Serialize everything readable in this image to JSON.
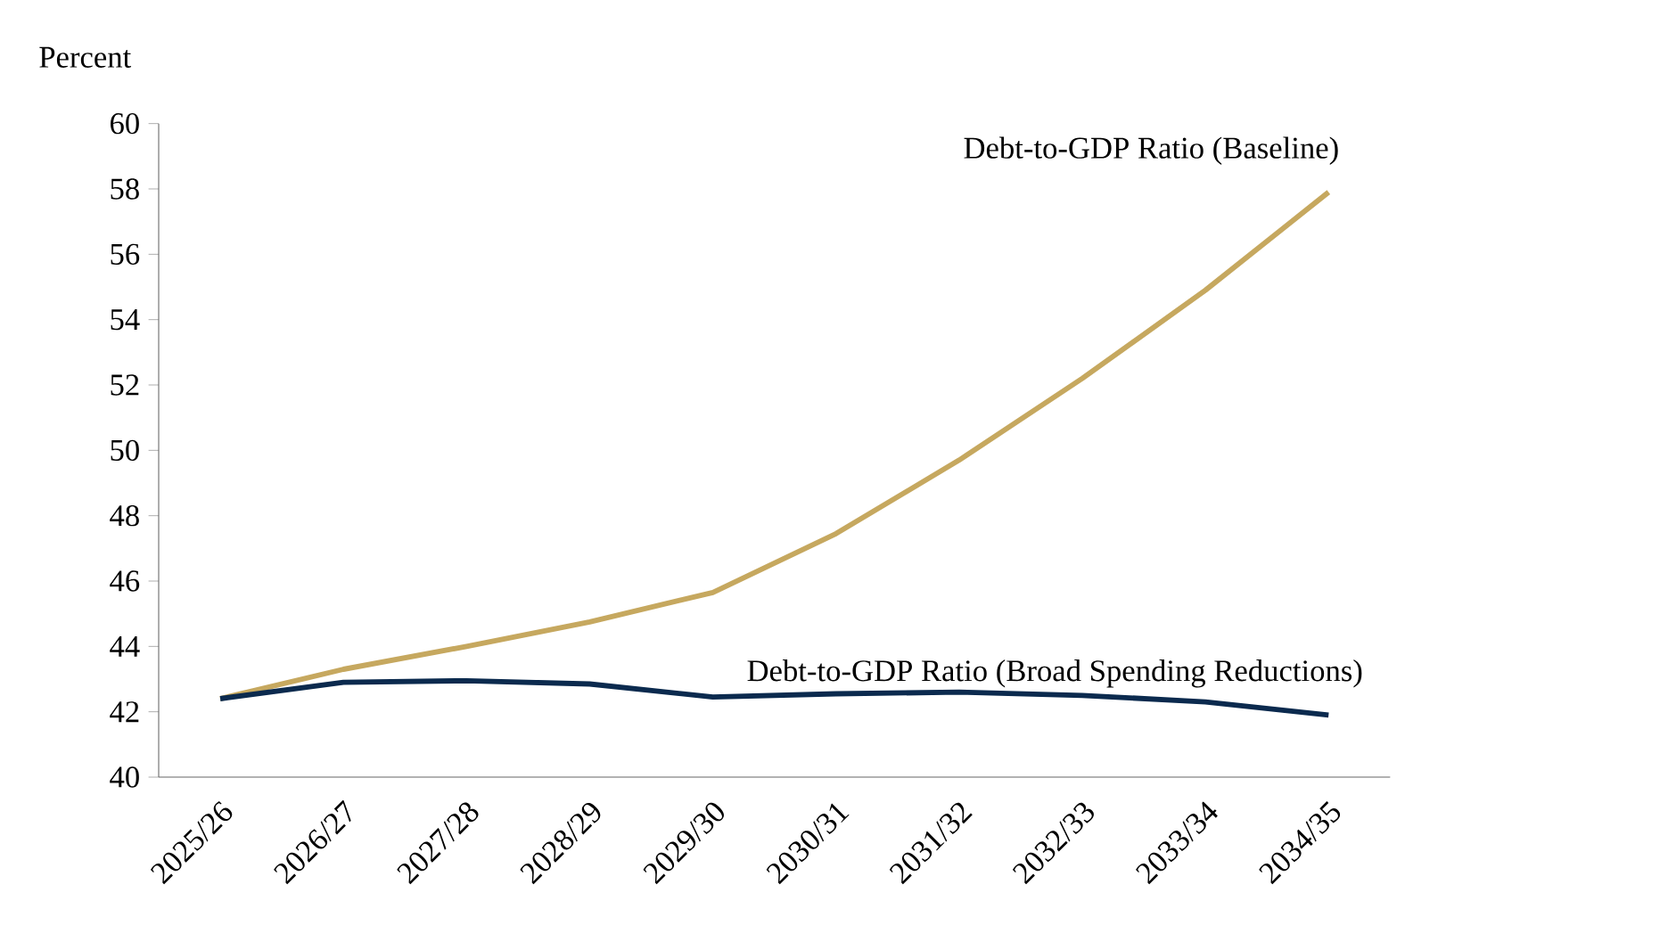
{
  "chart_data": {
    "type": "line",
    "ylabel": "Percent",
    "categories": [
      "2025/26",
      "2026/27",
      "2027/28",
      "2028/29",
      "2029/30",
      "2030/31",
      "2031/32",
      "2032/33",
      "2033/34",
      "2034/35"
    ],
    "series": [
      {
        "name": "Debt-to-GDP Ratio (Baseline)",
        "color": "#c6a85f",
        "values": [
          42.4,
          43.3,
          44.0,
          44.75,
          45.65,
          47.45,
          49.7,
          52.2,
          54.9,
          57.9
        ]
      },
      {
        "name": "Debt-to-GDP Ratio (Broad Spending Reductions)",
        "color": "#0b2a4e",
        "values": [
          42.4,
          42.9,
          42.95,
          42.85,
          42.45,
          42.55,
          42.6,
          42.5,
          42.3,
          41.9
        ]
      }
    ],
    "ylim": [
      40,
      60
    ],
    "yticks": [
      40,
      42,
      44,
      46,
      48,
      50,
      52,
      54,
      56,
      58,
      60
    ],
    "grid": false,
    "legend": false,
    "marker": "none",
    "line_style": "solid"
  }
}
